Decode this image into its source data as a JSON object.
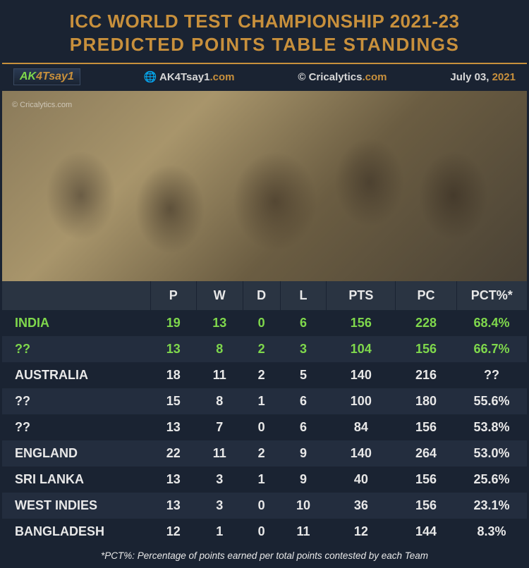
{
  "title": {
    "line1": "ICC WORLD TEST CHAMPIONSHIP 2021-23",
    "line2": "PREDICTED POINTS TABLE STANDINGS"
  },
  "meta": {
    "logo_ak": "AK",
    "logo_rest": "4Tsay1",
    "site1_prefix": "AK4Tsay1",
    "site1_suffix": ".com",
    "site2_prefix": "© Cricalytics",
    "site2_suffix": ".com",
    "date_prefix": "July 03, ",
    "date_year": "2021",
    "watermark": "© Cricalytics.com",
    "globe": "🌐"
  },
  "table": {
    "headers": [
      "",
      "P",
      "W",
      "D",
      "L",
      "PTS",
      "PC",
      "PCT%*"
    ],
    "rows": [
      {
        "highlight": true,
        "cells": [
          "INDIA",
          "19",
          "13",
          "0",
          "6",
          "156",
          "228",
          "68.4%"
        ]
      },
      {
        "highlight": true,
        "cells": [
          "??",
          "13",
          "8",
          "2",
          "3",
          "104",
          "156",
          "66.7%"
        ]
      },
      {
        "highlight": false,
        "cells": [
          "AUSTRALIA",
          "18",
          "11",
          "2",
          "5",
          "140",
          "216",
          "??"
        ]
      },
      {
        "highlight": false,
        "cells": [
          "??",
          "15",
          "8",
          "1",
          "6",
          "100",
          "180",
          "55.6%"
        ]
      },
      {
        "highlight": false,
        "cells": [
          "??",
          "13",
          "7",
          "0",
          "6",
          "84",
          "156",
          "53.8%"
        ]
      },
      {
        "highlight": false,
        "cells": [
          "ENGLAND",
          "22",
          "11",
          "2",
          "9",
          "140",
          "264",
          "53.0%"
        ]
      },
      {
        "highlight": false,
        "cells": [
          "SRI LANKA",
          "13",
          "3",
          "1",
          "9",
          "40",
          "156",
          "25.6%"
        ]
      },
      {
        "highlight": false,
        "cells": [
          "WEST INDIES",
          "13",
          "3",
          "0",
          "10",
          "36",
          "156",
          "23.1%"
        ]
      },
      {
        "highlight": false,
        "cells": [
          "BANGLADESH",
          "12",
          "1",
          "0",
          "11",
          "12",
          "144",
          "8.3%"
        ]
      }
    ]
  },
  "footnote": "*PCT%: Percentage of points earned per total points contested by each Team",
  "colors": {
    "background": "#1a2332",
    "alt_row": "#232d3e",
    "header_row": "#2a3442",
    "accent": "#c8903c",
    "highlight_text": "#7fd84c",
    "text": "#e8e8e8"
  }
}
